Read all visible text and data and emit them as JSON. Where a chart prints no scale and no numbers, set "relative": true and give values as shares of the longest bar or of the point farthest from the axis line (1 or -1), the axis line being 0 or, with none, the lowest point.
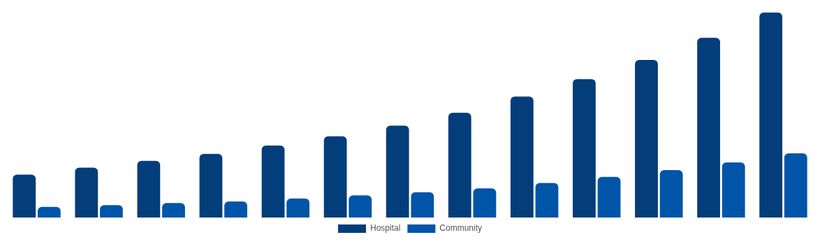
{
  "chart_data": {
    "type": "bar",
    "relative": true,
    "categories": [
      null,
      null,
      null,
      null,
      null,
      null,
      null,
      null,
      null,
      null,
      null,
      null,
      null
    ],
    "series": [
      {
        "name": "Hospital",
        "color": "#033d7a",
        "values": [
          0.209,
          0.243,
          0.276,
          0.31,
          0.351,
          0.396,
          0.448,
          0.511,
          0.59,
          0.675,
          0.769,
          0.877,
          1
        ]
      },
      {
        "name": "Community",
        "color": "#0055a8",
        "values": [
          0.052,
          0.06,
          0.071,
          0.078,
          0.093,
          0.108,
          0.123,
          0.142,
          0.168,
          0.198,
          0.231,
          0.269,
          0.313
        ]
      }
    ],
    "legend": "bottom"
  }
}
